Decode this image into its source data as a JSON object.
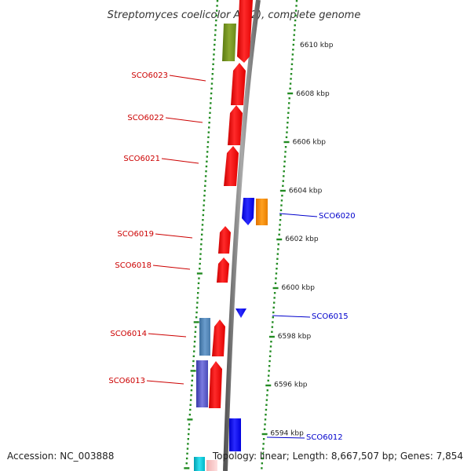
{
  "title": "Streptomyces coelicolor A3(2), complete genome",
  "accession": "Accession: NC_003888",
  "topology": "Topology: linear; Length: 8,667,507 bp; Genes: 7,854",
  "colors": {
    "forward_gene": "#ff1a1a",
    "reverse_gene": "#1a1aff",
    "label_forward": "#cc0000",
    "label_reverse": "#0000cc",
    "tick": "#228b22",
    "backbone": "#777777"
  },
  "scale": [
    {
      "label": "6610 kbp",
      "pos": 6610
    },
    {
      "label": "6608 kbp",
      "pos": 6608
    },
    {
      "label": "6606 kbp",
      "pos": 6606
    },
    {
      "label": "6604 kbp",
      "pos": 6604
    },
    {
      "label": "6602 kbp",
      "pos": 6602
    },
    {
      "label": "6600 kbp",
      "pos": 6600
    },
    {
      "label": "6598 kbp",
      "pos": 6598
    },
    {
      "label": "6596 kbp",
      "pos": 6596
    },
    {
      "label": "6594 kbp",
      "pos": 6594
    }
  ],
  "gene_labels": [
    {
      "name": "SCO6023",
      "strand": "forward"
    },
    {
      "name": "SCO6022",
      "strand": "forward"
    },
    {
      "name": "SCO6021",
      "strand": "forward"
    },
    {
      "name": "SCO6019",
      "strand": "forward"
    },
    {
      "name": "SCO6018",
      "strand": "forward"
    },
    {
      "name": "SCO6014",
      "strand": "forward"
    },
    {
      "name": "SCO6013",
      "strand": "forward"
    },
    {
      "name": "SCO6020",
      "strand": "reverse"
    },
    {
      "name": "SCO6015",
      "strand": "reverse"
    },
    {
      "name": "SCO6012",
      "strand": "reverse"
    }
  ]
}
